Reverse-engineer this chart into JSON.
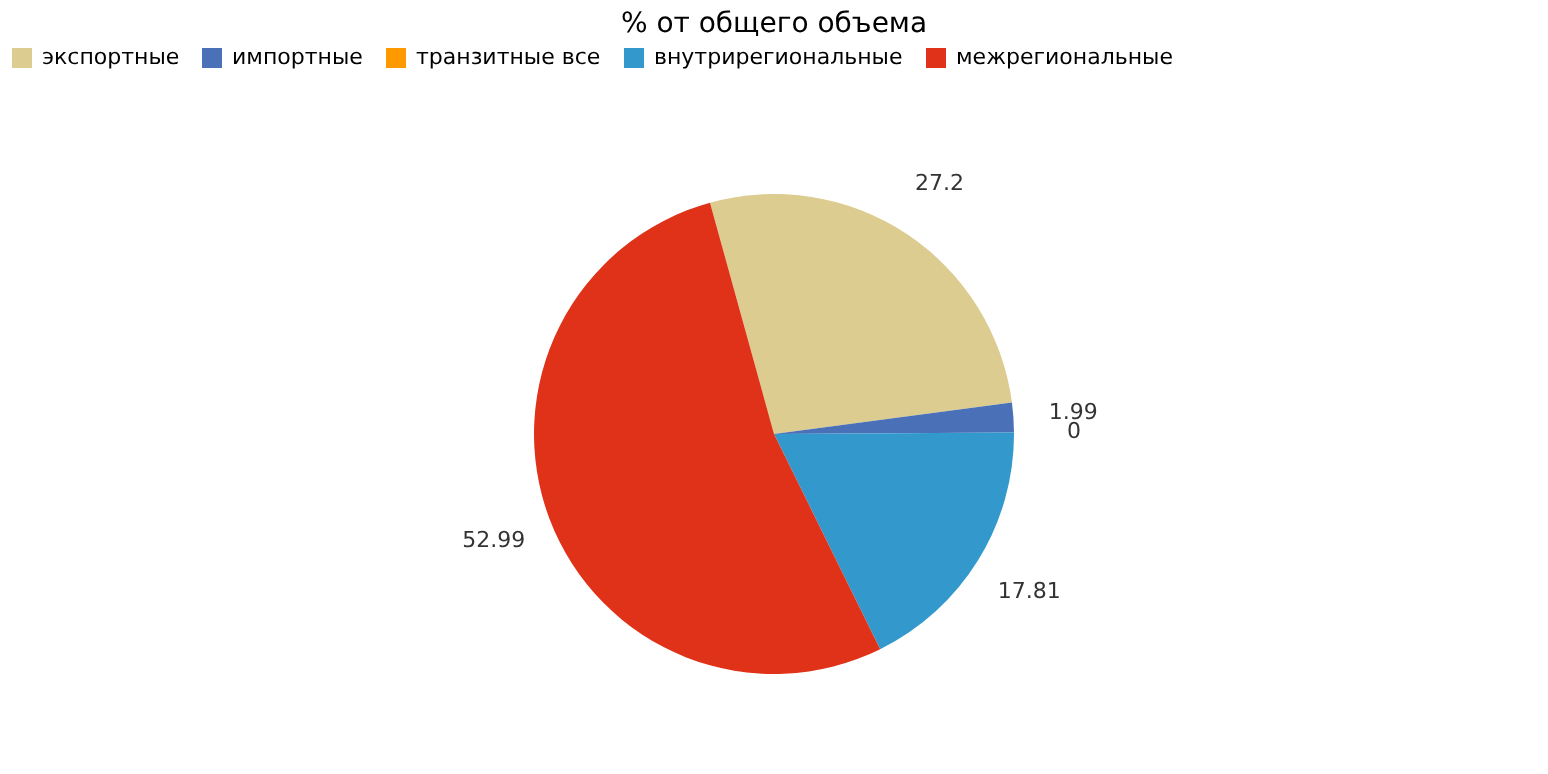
{
  "chart_data": {
    "type": "pie",
    "title": "% от общего объема",
    "categories": [
      "экспортные",
      "импортные",
      "транзитные все",
      "внутрирегиональные",
      "межрегиональные"
    ],
    "values": [
      27.2,
      1.99,
      0,
      17.81,
      52.99
    ],
    "colors": [
      "#dccc8f",
      "#4a70b8",
      "#ff9900",
      "#3399cc",
      "#e03218"
    ],
    "value_labels": [
      "27.2",
      "1.99",
      "0",
      "17.81",
      "52.99"
    ],
    "legend": "top"
  }
}
